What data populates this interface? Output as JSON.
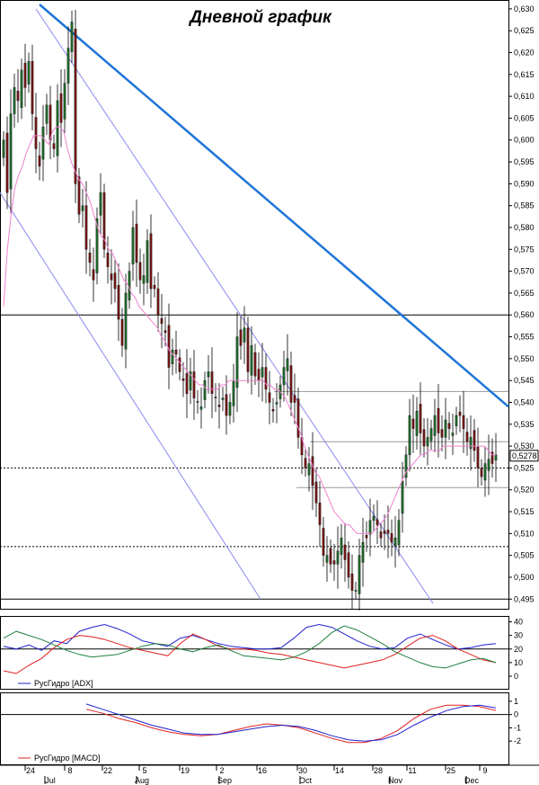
{
  "window": {
    "title": "Дневной график"
  },
  "chart_data": [
    {
      "type": "candlestick",
      "title": "Дневной график",
      "ylim": [
        0.493,
        0.631
      ],
      "yticks": [
        "0,630",
        "0,625",
        "0,620",
        "0,615",
        "0,610",
        "0,605",
        "0,600",
        "0,595",
        "0,590",
        "0,585",
        "0,580",
        "0,575",
        "0,570",
        "0,565",
        "0,560",
        "0,555",
        "0,550",
        "0,545",
        "0,540",
        "0,535",
        "0,530",
        "0,525",
        "0,520",
        "0,515",
        "0,510",
        "0,505",
        "0,500",
        "0,495"
      ],
      "last_price_label": "0,5278",
      "grid": false,
      "closes": [
        0.6,
        0.588,
        0.606,
        0.612,
        0.609,
        0.616,
        0.612,
        0.618,
        0.606,
        0.598,
        0.594,
        0.603,
        0.608,
        0.6,
        0.598,
        0.609,
        0.604,
        0.613,
        0.621,
        0.627,
        0.59,
        0.583,
        0.585,
        0.575,
        0.572,
        0.568,
        0.582,
        0.588,
        0.575,
        0.571,
        0.568,
        0.566,
        0.559,
        0.553,
        0.565,
        0.57,
        0.58,
        0.572,
        0.568,
        0.569,
        0.577,
        0.566,
        0.566,
        0.56,
        0.558,
        0.556,
        0.548,
        0.552,
        0.551,
        0.547,
        0.545,
        0.542,
        0.547,
        0.541,
        0.54,
        0.539,
        0.545,
        0.547,
        0.542,
        0.541,
        0.539,
        0.541,
        0.537,
        0.54,
        0.545,
        0.555,
        0.553,
        0.557,
        0.547,
        0.553,
        0.546,
        0.545,
        0.548,
        0.543,
        0.54,
        0.538,
        0.54,
        0.544,
        0.548,
        0.55,
        0.54,
        0.54,
        0.532,
        0.528,
        0.525,
        0.526,
        0.521,
        0.517,
        0.512,
        0.505,
        0.505,
        0.503,
        0.503,
        0.506,
        0.509,
        0.504,
        0.5,
        0.497,
        0.497,
        0.505,
        0.508,
        0.509,
        0.513,
        0.514,
        0.512,
        0.509,
        0.51,
        0.51,
        0.508,
        0.509,
        0.513,
        0.522,
        0.528,
        0.537,
        0.534,
        0.538,
        0.533,
        0.53,
        0.532,
        0.534,
        0.537,
        0.533,
        0.532,
        0.536,
        0.534,
        0.533,
        0.537,
        0.537,
        0.534,
        0.531,
        0.532,
        0.529,
        0.525,
        0.523,
        0.526,
        0.527,
        0.526,
        0.528
      ],
      "series": [
        {
          "name": "",
          "type": "line",
          "role": "moving-average",
          "values": [
            0.562,
            0.575,
            0.583,
            0.589,
            0.592,
            0.594,
            0.597,
            0.599,
            0.601,
            0.601,
            0.601,
            0.6,
            0.599,
            0.602,
            0.603,
            0.603,
            0.602,
            0.598,
            0.595,
            0.593,
            0.591,
            0.59,
            0.588,
            0.586,
            0.583,
            0.58,
            0.578,
            0.577,
            0.575,
            0.574,
            0.572,
            0.57,
            0.568,
            0.567,
            0.565,
            0.564,
            0.562,
            0.561,
            0.56,
            0.559,
            0.558,
            0.557,
            0.555,
            0.554,
            0.552,
            0.551,
            0.55,
            0.549,
            0.548,
            0.547,
            0.546,
            0.545,
            0.544,
            0.544,
            0.543,
            0.543,
            0.543,
            0.543,
            0.544,
            0.544,
            0.545,
            0.545,
            0.545,
            0.545,
            0.545,
            0.545,
            0.545,
            0.545,
            0.545,
            0.545,
            0.544,
            0.544,
            0.543,
            0.543,
            0.542,
            0.541,
            0.539,
            0.537,
            0.535,
            0.533,
            0.53,
            0.528,
            0.526,
            0.524,
            0.523,
            0.521,
            0.519,
            0.517,
            0.515,
            0.514,
            0.513,
            0.512,
            0.512,
            0.511,
            0.51,
            0.51,
            0.51,
            0.51,
            0.51,
            0.511,
            0.512,
            0.513,
            0.514,
            0.516,
            0.518,
            0.52,
            0.522,
            0.524,
            0.525,
            0.526,
            0.527,
            0.528,
            0.528,
            0.529,
            0.529,
            0.529,
            0.529,
            0.53,
            0.53,
            0.53,
            0.53,
            0.53,
            0.53,
            0.53,
            0.53,
            0.53,
            0.53,
            0.53,
            0.53,
            0.529,
            0.528,
            0.528
          ]
        },
        {
          "name": "",
          "type": "line",
          "role": "trendline",
          "values": [
            0.631,
            0.539
          ]
        },
        {
          "name": "",
          "type": "line",
          "role": "channel-upper",
          "values": [
            0.63,
            0.494
          ]
        },
        {
          "name": "",
          "type": "line",
          "role": "channel-lower",
          "values": [
            0.588,
            0.495
          ]
        }
      ],
      "hlines": [
        {
          "value": 0.56,
          "style": "solid"
        },
        {
          "value": 0.525,
          "style": "dotted"
        },
        {
          "value": 0.507,
          "style": "dotted"
        },
        {
          "value": 0.495,
          "style": "solid"
        },
        {
          "value": 0.5425,
          "style": "solid-short"
        },
        {
          "value": 0.531,
          "style": "solid-short"
        },
        {
          "value": 0.5205,
          "style": "solid-short"
        }
      ],
      "colors": {
        "up": "#1f6f2a",
        "down": "#7a1616",
        "ma": "#f080d0",
        "trend": "#1e74d8",
        "channel": "#8a8af0"
      }
    },
    {
      "type": "line",
      "legend": [
        "РусГидро [ADX]"
      ],
      "ylim": [
        0,
        41
      ],
      "yticks": [
        "40",
        "30",
        "20",
        "10",
        "0"
      ],
      "hlines": [
        20
      ],
      "series": [
        {
          "name": "РусГидро [ADX]",
          "color": "#2020d0",
          "values": [
            22,
            20,
            23,
            19,
            26,
            24,
            33,
            36,
            38,
            35,
            31,
            26,
            24,
            22,
            28,
            30,
            27,
            24,
            22,
            21,
            20,
            20,
            21,
            28,
            36,
            38,
            36,
            31,
            26,
            22,
            20,
            21,
            28,
            31,
            27,
            23,
            20,
            21,
            23,
            24
          ]
        },
        {
          "name": "",
          "color": "#e02020",
          "values": [
            4,
            2,
            8,
            13,
            21,
            27,
            30,
            29,
            27,
            24,
            21,
            19,
            17,
            15,
            24,
            31,
            27,
            22,
            20,
            20,
            19,
            17,
            16,
            14,
            12,
            10,
            8,
            6,
            8,
            10,
            12,
            16,
            22,
            28,
            30,
            26,
            20,
            16,
            12,
            10
          ]
        },
        {
          "name": "",
          "color": "#208040",
          "values": [
            28,
            33,
            30,
            27,
            23,
            19,
            16,
            14,
            15,
            16,
            19,
            22,
            24,
            23,
            20,
            18,
            21,
            23,
            19,
            15,
            14,
            13,
            12,
            14,
            18,
            24,
            32,
            37,
            34,
            29,
            24,
            18,
            14,
            10,
            7,
            6,
            9,
            12,
            13,
            10
          ]
        }
      ]
    },
    {
      "type": "line",
      "legend": [
        "РусГидро [MACD]"
      ],
      "ylim": [
        -2.8,
        1.4
      ],
      "yticks": [
        "1",
        "0",
        "-1",
        "-2"
      ],
      "hlines": [
        0
      ],
      "series": [
        {
          "name": "РусГидро [MACD]",
          "color": "#e02020",
          "values": [
            0.4,
            0.1,
            -0.3,
            -0.6,
            -1.0,
            -1.3,
            -1.5,
            -1.6,
            -1.5,
            -1.2,
            -0.9,
            -0.7,
            -0.8,
            -1.0,
            -1.4,
            -1.8,
            -2.1,
            -2.1,
            -1.8,
            -1.2,
            -0.3,
            0.4,
            0.7,
            0.7,
            0.6,
            0.3
          ]
        },
        {
          "name": "",
          "color": "#2020d0",
          "values": [
            0.8,
            0.4,
            0.0,
            -0.4,
            -0.8,
            -1.1,
            -1.4,
            -1.5,
            -1.5,
            -1.3,
            -1.1,
            -0.9,
            -0.8,
            -0.9,
            -1.2,
            -1.6,
            -1.9,
            -2.0,
            -1.9,
            -1.5,
            -0.8,
            -0.2,
            0.3,
            0.6,
            0.7,
            0.5
          ]
        }
      ]
    }
  ],
  "xaxis": {
    "day_labels": [
      "24",
      "8",
      "22",
      "5",
      "19",
      "2",
      "16",
      "30",
      "14",
      "28",
      "11",
      "25",
      "9"
    ],
    "month_labels": [
      "Jul",
      "Aug",
      "Sep",
      "Oct",
      "Nov",
      "Dec"
    ]
  }
}
